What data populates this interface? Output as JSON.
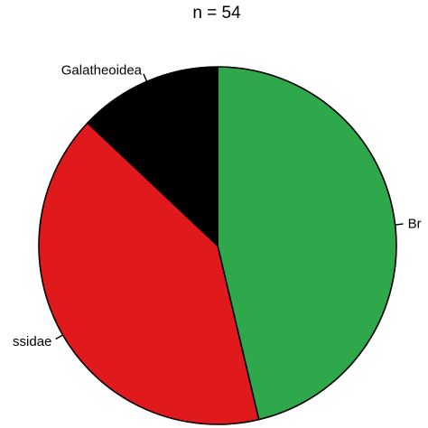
{
  "chart_data": {
    "type": "pie",
    "title": "n = 54",
    "slices": [
      {
        "label": "Br",
        "value": 25,
        "color": "#2ea84a"
      },
      {
        "label": "ssidae",
        "value": 22,
        "color": "#e0191c"
      },
      {
        "label": "Galatheoidea",
        "value": 7,
        "color": "#000000"
      }
    ],
    "direction": "clockwise",
    "start": "top"
  }
}
